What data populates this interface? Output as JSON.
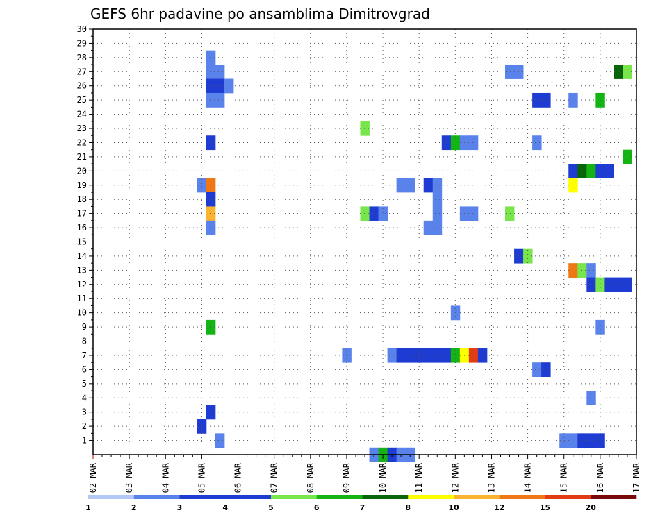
{
  "chart_data": {
    "type": "heatmap",
    "title": "GEFS 6hr padavine po ansamblima Dimitrovgrad",
    "xlabel": "",
    "ylabel": "",
    "x_tick_labels": [
      "02 MAR",
      "03 MAR",
      "04 MAR",
      "05 MAR",
      "06 MAR",
      "07 MAR",
      "08 MAR",
      "09 MAR",
      "10 MAR",
      "11 MAR",
      "12 MAR",
      "13 MAR",
      "14 MAR",
      "15 MAR",
      "16 MAR",
      "17 MAR"
    ],
    "x_unit": "6-hour steps from 02 MAR 00Z",
    "xlim": [
      0,
      60
    ],
    "y_tick_labels": [
      "1",
      "2",
      "3",
      "4",
      "5",
      "6",
      "7",
      "8",
      "9",
      "10",
      "11",
      "12",
      "13",
      "14",
      "15",
      "16",
      "17",
      "18",
      "19",
      "20",
      "21",
      "22",
      "23",
      "24",
      "25",
      "26",
      "27",
      "28",
      "29",
      "30"
    ],
    "ylim": [
      0,
      30
    ],
    "grid": true,
    "legend": {
      "placement": "bottom",
      "labels": [
        "1",
        "2",
        "3",
        "4",
        "5",
        "6",
        "7",
        "8",
        "10",
        "12",
        "15",
        "20"
      ],
      "colors": [
        "#b4c8f5",
        "#5a82eb",
        "#1e3cd2",
        "#1e3cd2",
        "#78e64b",
        "#14b414",
        "#0a640a",
        "#ffff00",
        "#fab432",
        "#f07814",
        "#e13c14",
        "#780a0a"
      ]
    },
    "cells": [
      {
        "m": 28,
        "t": 13,
        "c": 1
      },
      {
        "m": 27,
        "t": 13,
        "c": 1
      },
      {
        "m": 27,
        "t": 14,
        "c": 1
      },
      {
        "m": 26,
        "t": 13,
        "c": 3
      },
      {
        "m": 26,
        "t": 14,
        "c": 3
      },
      {
        "m": 26,
        "t": 15,
        "c": 1
      },
      {
        "m": 25,
        "t": 13,
        "c": 1
      },
      {
        "m": 25,
        "t": 14,
        "c": 1
      },
      {
        "m": 22,
        "t": 13,
        "c": 2
      },
      {
        "m": 19,
        "t": 12,
        "c": 1
      },
      {
        "m": 19,
        "t": 13,
        "c": 9
      },
      {
        "m": 18,
        "t": 13,
        "c": 2
      },
      {
        "m": 17,
        "t": 13,
        "c": 8
      },
      {
        "m": 16,
        "t": 13,
        "c": 1
      },
      {
        "m": 9,
        "t": 13,
        "c": 5
      },
      {
        "m": 3,
        "t": 13,
        "c": 2
      },
      {
        "m": 2,
        "t": 12,
        "c": 3
      },
      {
        "m": 1,
        "t": 14,
        "c": 1
      },
      {
        "m": 23,
        "t": 30,
        "c": 4
      },
      {
        "m": 17,
        "t": 30,
        "c": 4
      },
      {
        "m": 17,
        "t": 31,
        "c": 2
      },
      {
        "m": 17,
        "t": 32,
        "c": 1
      },
      {
        "m": 7,
        "t": 28,
        "c": 1
      },
      {
        "m": 0,
        "t": 31,
        "c": 1
      },
      {
        "m": 0,
        "t": 32,
        "c": 5
      },
      {
        "m": 0,
        "t": 33,
        "c": 2
      },
      {
        "m": 0,
        "t": 34,
        "c": 1
      },
      {
        "m": 0,
        "t": 35,
        "c": 1
      },
      {
        "m": 7,
        "t": 33,
        "c": 1
      },
      {
        "m": 7,
        "t": 34,
        "c": 2
      },
      {
        "m": 7,
        "t": 35,
        "c": 3
      },
      {
        "m": 7,
        "t": 36,
        "c": 3
      },
      {
        "m": 7,
        "t": 37,
        "c": 2
      },
      {
        "m": 7,
        "t": 38,
        "c": 3
      },
      {
        "m": 7,
        "t": 39,
        "c": 3
      },
      {
        "m": 7,
        "t": 40,
        "c": 5
      },
      {
        "m": 7,
        "t": 41,
        "c": 7
      },
      {
        "m": 7,
        "t": 42,
        "c": 10
      },
      {
        "m": 7,
        "t": 43,
        "c": 2
      },
      {
        "m": 19,
        "t": 34,
        "c": 1
      },
      {
        "m": 19,
        "t": 35,
        "c": 1
      },
      {
        "m": 19,
        "t": 37,
        "c": 2
      },
      {
        "m": 19,
        "t": 38,
        "c": 1
      },
      {
        "m": 18,
        "t": 38,
        "c": 1
      },
      {
        "m": 17,
        "t": 38,
        "c": 1
      },
      {
        "m": 16,
        "t": 37,
        "c": 1
      },
      {
        "m": 16,
        "t": 38,
        "c": 1
      },
      {
        "m": 17,
        "t": 41,
        "c": 1
      },
      {
        "m": 17,
        "t": 42,
        "c": 1
      },
      {
        "m": 22,
        "t": 39,
        "c": 2
      },
      {
        "m": 22,
        "t": 40,
        "c": 5
      },
      {
        "m": 22,
        "t": 41,
        "c": 1
      },
      {
        "m": 22,
        "t": 42,
        "c": 1
      },
      {
        "m": 10,
        "t": 40,
        "c": 1
      },
      {
        "m": 27,
        "t": 46,
        "c": 1
      },
      {
        "m": 27,
        "t": 47,
        "c": 1
      },
      {
        "m": 25,
        "t": 49,
        "c": 3
      },
      {
        "m": 25,
        "t": 50,
        "c": 3
      },
      {
        "m": 25,
        "t": 53,
        "c": 1
      },
      {
        "m": 25,
        "t": 56,
        "c": 5
      },
      {
        "m": 22,
        "t": 49,
        "c": 1
      },
      {
        "m": 17,
        "t": 46,
        "c": 4
      },
      {
        "m": 27,
        "t": 58,
        "c": 6
      },
      {
        "m": 27,
        "t": 59,
        "c": 4
      },
      {
        "m": 21,
        "t": 59,
        "c": 5
      },
      {
        "m": 20,
        "t": 53,
        "c": 3
      },
      {
        "m": 20,
        "t": 54,
        "c": 6
      },
      {
        "m": 20,
        "t": 55,
        "c": 5
      },
      {
        "m": 20,
        "t": 56,
        "c": 3
      },
      {
        "m": 20,
        "t": 57,
        "c": 2
      },
      {
        "m": 19,
        "t": 53,
        "c": 7
      },
      {
        "m": 14,
        "t": 47,
        "c": 2
      },
      {
        "m": 14,
        "t": 48,
        "c": 4
      },
      {
        "m": 13,
        "t": 53,
        "c": 9
      },
      {
        "m": 13,
        "t": 54,
        "c": 4
      },
      {
        "m": 13,
        "t": 55,
        "c": 1
      },
      {
        "m": 12,
        "t": 55,
        "c": 2
      },
      {
        "m": 12,
        "t": 56,
        "c": 4
      },
      {
        "m": 12,
        "t": 57,
        "c": 3
      },
      {
        "m": 12,
        "t": 58,
        "c": 3
      },
      {
        "m": 12,
        "t": 59,
        "c": 2
      },
      {
        "m": 9,
        "t": 56,
        "c": 1
      },
      {
        "m": 6,
        "t": 49,
        "c": 1
      },
      {
        "m": 6,
        "t": 50,
        "c": 2
      },
      {
        "m": 4,
        "t": 55,
        "c": 1
      },
      {
        "m": 1,
        "t": 52,
        "c": 1
      },
      {
        "m": 1,
        "t": 53,
        "c": 1
      },
      {
        "m": 1,
        "t": 54,
        "c": 2
      },
      {
        "m": 1,
        "t": 55,
        "c": 2
      },
      {
        "m": 1,
        "t": 56,
        "c": 2
      }
    ]
  }
}
